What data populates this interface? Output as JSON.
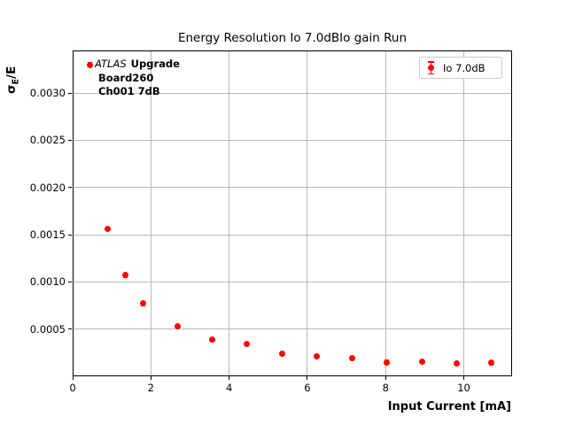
{
  "title": "Energy Resolution Io 7.0dBIo gain Run",
  "annotation": {
    "experiment": "ATLAS",
    "tag": "Upgrade",
    "line2": "Board260",
    "line3": "Ch001 7dB"
  },
  "legend": {
    "label": "Io 7.0dB"
  },
  "axes": {
    "xlabel": "Input Current [mA]",
    "ylabel_sigma": "σ",
    "ylabel_sub": "E",
    "ylabel_rest": "/E"
  },
  "colors": {
    "marker": "#ff0000",
    "grid": "#b8b8b8",
    "spine": "#000000",
    "legend_border": "#c9c9c9"
  },
  "chart_data": {
    "type": "scatter",
    "title": "Energy Resolution Io 7.0dBIo gain Run",
    "xlabel": "Input Current [mA]",
    "ylabel": "σE/E",
    "xlim": [
      0,
      11.21
    ],
    "ylim": [
      1e-05,
      0.00345
    ],
    "xticks": [
      0,
      2,
      4,
      6,
      8,
      10
    ],
    "xtick_labels": [
      "0",
      "2",
      "4",
      "6",
      "8",
      "10"
    ],
    "yticks": [
      0.0005,
      0.001,
      0.0015,
      0.002,
      0.0025,
      0.003
    ],
    "ytick_labels": [
      "0.0005",
      "0.0010",
      "0.0015",
      "0.0020",
      "0.0025",
      "0.0030"
    ],
    "grid": true,
    "legend_position": "upper right",
    "series": [
      {
        "name": "Io 7.0dB",
        "color": "#ff0000",
        "marker": "o",
        "style": "errorbar",
        "x": [
          0.45,
          0.89,
          1.34,
          1.79,
          2.68,
          3.57,
          4.46,
          5.36,
          6.25,
          7.14,
          8.03,
          8.93,
          9.82,
          10.71
        ],
        "y": [
          0.0033,
          0.00156,
          0.00107,
          0.00077,
          0.00053,
          0.00039,
          0.00034,
          0.00024,
          0.00021,
          0.000195,
          0.00015,
          0.000158,
          0.000138,
          0.000142
        ],
        "yerr": [
          2e-05,
          2e-05,
          2e-05,
          2e-05,
          2e-05,
          2e-05,
          2e-05,
          2e-05,
          2e-05,
          2e-05,
          2e-05,
          2e-05,
          2e-05,
          2e-05
        ]
      }
    ]
  }
}
